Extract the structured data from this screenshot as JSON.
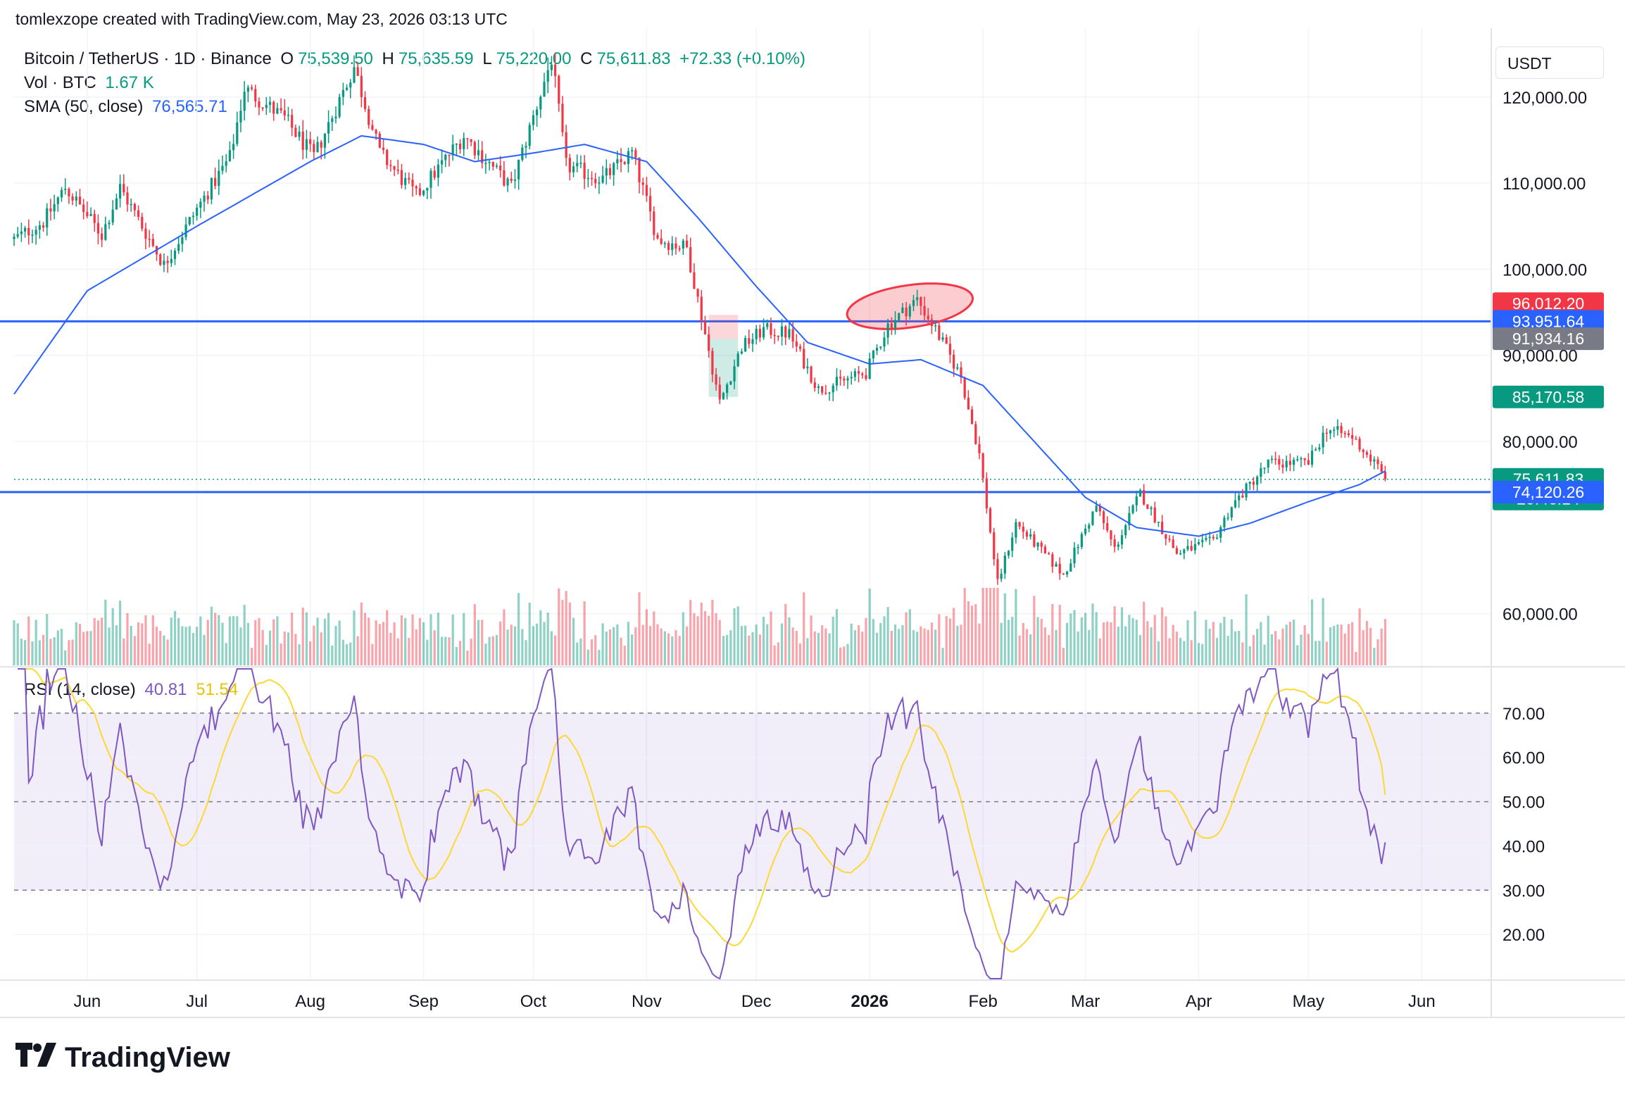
{
  "header": {
    "credit": "tomlexzope created with TradingView.com, May 23, 2026 03:13 UTC"
  },
  "legend": {
    "symbol": "Bitcoin / TetherUS · 1D · Binance",
    "o_label": "O",
    "o_value": "75,539.50",
    "h_label": "H",
    "h_value": "75,635.59",
    "l_label": "L",
    "l_value": "75,220.00",
    "c_label": "C",
    "c_value": "75,611.83",
    "change": "+72.33 (+0.10%)",
    "vol_label": "Vol · BTC",
    "vol_value": "1.67 K",
    "sma_label": "SMA (50, close)",
    "sma_value": "76,565.71",
    "rsi_label": "RSI (14, close)",
    "rsi_value": "40.81",
    "rsi_ma_value": "51.54"
  },
  "axis": {
    "unit": "USDT"
  },
  "brand": {
    "name": "TradingView"
  },
  "colors": {
    "up": "#089981",
    "down": "#f23645",
    "sma": "#2962ff",
    "rsi": "#7e57c2",
    "rsi_ma": "#fdd835",
    "hline": "#2962ff"
  },
  "chart_data": [
    {
      "type": "candlestick",
      "title": "Bitcoin / TetherUS · 1D · Binance",
      "x_range": [
        "2025-05-12",
        "2026-06-20"
      ],
      "y_range": [
        54000,
        128000
      ],
      "y_ticks": [
        {
          "value": 60000,
          "label": "60,000.00"
        },
        {
          "value": 80000,
          "label": "80,000.00"
        },
        {
          "value": 90000,
          "label": "90,000.00"
        },
        {
          "value": 100000,
          "label": "100,000.00"
        },
        {
          "value": 110000,
          "label": "110,000.00"
        },
        {
          "value": 120000,
          "label": "120,000.00"
        }
      ],
      "x_ticks": [
        {
          "date": "2025-06-01",
          "label": "Jun"
        },
        {
          "date": "2025-07-01",
          "label": "Jul"
        },
        {
          "date": "2025-08-01",
          "label": "Aug"
        },
        {
          "date": "2025-09-01",
          "label": "Sep"
        },
        {
          "date": "2025-10-01",
          "label": "Oct"
        },
        {
          "date": "2025-11-01",
          "label": "Nov"
        },
        {
          "date": "2025-12-01",
          "label": "Dec"
        },
        {
          "date": "2026-01-01",
          "label": "2026"
        },
        {
          "date": "2026-02-01",
          "label": "Feb"
        },
        {
          "date": "2026-03-01",
          "label": "Mar"
        },
        {
          "date": "2026-04-01",
          "label": "Apr"
        },
        {
          "date": "2026-05-01",
          "label": "May"
        },
        {
          "date": "2026-06-01",
          "label": "Jun"
        }
      ],
      "close_anchors": [
        [
          "2025-05-12",
          103500
        ],
        [
          "2025-05-20",
          105500
        ],
        [
          "2025-05-26",
          109500
        ],
        [
          "2025-06-05",
          104000
        ],
        [
          "2025-06-10",
          109500
        ],
        [
          "2025-06-22",
          100500
        ],
        [
          "2025-07-01",
          107000
        ],
        [
          "2025-07-10",
          113000
        ],
        [
          "2025-07-14",
          121000
        ],
        [
          "2025-07-25",
          117500
        ],
        [
          "2025-08-02",
          113000
        ],
        [
          "2025-08-13",
          123500
        ],
        [
          "2025-08-20",
          113500
        ],
        [
          "2025-08-30",
          108500
        ],
        [
          "2025-09-12",
          115500
        ],
        [
          "2025-09-25",
          109500
        ],
        [
          "2025-10-06",
          124500
        ],
        [
          "2025-10-10",
          112000
        ],
        [
          "2025-10-20",
          110500
        ],
        [
          "2025-10-28",
          113500
        ],
        [
          "2025-11-04",
          103500
        ],
        [
          "2025-11-12",
          102500
        ],
        [
          "2025-11-16",
          94500
        ],
        [
          "2025-11-21",
          84500
        ],
        [
          "2025-11-27",
          91000
        ],
        [
          "2025-12-03",
          93000
        ],
        [
          "2025-12-10",
          92500
        ],
        [
          "2025-12-18",
          86000
        ],
        [
          "2025-12-31",
          88000
        ],
        [
          "2026-01-06",
          93500
        ],
        [
          "2026-01-14",
          96500
        ],
        [
          "2026-01-19",
          93000
        ],
        [
          "2026-01-26",
          87500
        ],
        [
          "2026-01-31",
          78500
        ],
        [
          "2026-02-05",
          63500
        ],
        [
          "2026-02-10",
          70500
        ],
        [
          "2026-02-23",
          64500
        ],
        [
          "2026-03-04",
          72500
        ],
        [
          "2026-03-09",
          67500
        ],
        [
          "2026-03-16",
          74000
        ],
        [
          "2026-03-26",
          67000
        ],
        [
          "2026-04-05",
          68500
        ],
        [
          "2026-04-10",
          72500
        ],
        [
          "2026-04-20",
          77500
        ],
        [
          "2026-05-01",
          77500
        ],
        [
          "2026-05-06",
          81500
        ],
        [
          "2026-05-13",
          80500
        ],
        [
          "2026-05-20",
          77000
        ],
        [
          "2026-05-22",
          75611.83
        ]
      ],
      "sma_anchors": [
        [
          "2025-05-12",
          85500
        ],
        [
          "2025-06-01",
          97500
        ],
        [
          "2025-07-01",
          105000
        ],
        [
          "2025-08-01",
          112500
        ],
        [
          "2025-08-15",
          115500
        ],
        [
          "2025-09-01",
          114500
        ],
        [
          "2025-09-15",
          112500
        ],
        [
          "2025-10-01",
          113500
        ],
        [
          "2025-10-15",
          114500
        ],
        [
          "2025-11-01",
          112500
        ],
        [
          "2025-11-15",
          106000
        ],
        [
          "2025-12-01",
          98000
        ],
        [
          "2025-12-15",
          91500
        ],
        [
          "2026-01-01",
          89000
        ],
        [
          "2026-01-15",
          89500
        ],
        [
          "2026-02-01",
          86500
        ],
        [
          "2026-02-15",
          80000
        ],
        [
          "2026-03-01",
          73500
        ],
        [
          "2026-03-15",
          70000
        ],
        [
          "2026-04-01",
          69000
        ],
        [
          "2026-04-15",
          70500
        ],
        [
          "2026-05-01",
          73000
        ],
        [
          "2026-05-15",
          75000
        ],
        [
          "2026-05-22",
          76565.71
        ]
      ],
      "annotations": {
        "horizontal_lines": [
          93951.64,
          74120.26
        ],
        "highlight_ellipse": {
          "center_date": "2026-01-12",
          "center_value": 95700
        },
        "long_position_box": {
          "start": "2025-11-18",
          "end": "2025-11-26",
          "entry": 91934.16,
          "stop": 94700,
          "target": 85170.58
        }
      },
      "price_labels": [
        {
          "value": 96012.2,
          "label": "96,012.20",
          "color": "#f23645"
        },
        {
          "value": 93951.64,
          "label": "93,951.64",
          "color": "#2962ff"
        },
        {
          "value": 91934.16,
          "label": "91,934.16",
          "color": "#787b86"
        },
        {
          "value": 85170.58,
          "label": "85,170.58",
          "color": "#089981"
        },
        {
          "value": 75611.83,
          "label": "75,611.83",
          "sub": "20:46:14",
          "color": "#089981"
        },
        {
          "value": 74120.26,
          "label": "74,120.26",
          "color": "#2962ff"
        }
      ],
      "volume_note": "BTC volume bars, last value 1.67 K"
    },
    {
      "type": "line",
      "title": "RSI (14, close)",
      "y_range": [
        10,
        80
      ],
      "y_ticks": [
        {
          "value": 20,
          "label": "20.00"
        },
        {
          "value": 30,
          "label": "30.00"
        },
        {
          "value": 40,
          "label": "40.00"
        },
        {
          "value": 50,
          "label": "50.00"
        },
        {
          "value": 60,
          "label": "60.00"
        },
        {
          "value": 70,
          "label": "70.00"
        }
      ],
      "band": [
        30,
        70
      ],
      "series": [
        {
          "name": "RSI (14, close)",
          "last": 40.81
        },
        {
          "name": "RSI-based MA",
          "last": 51.54
        }
      ]
    }
  ]
}
